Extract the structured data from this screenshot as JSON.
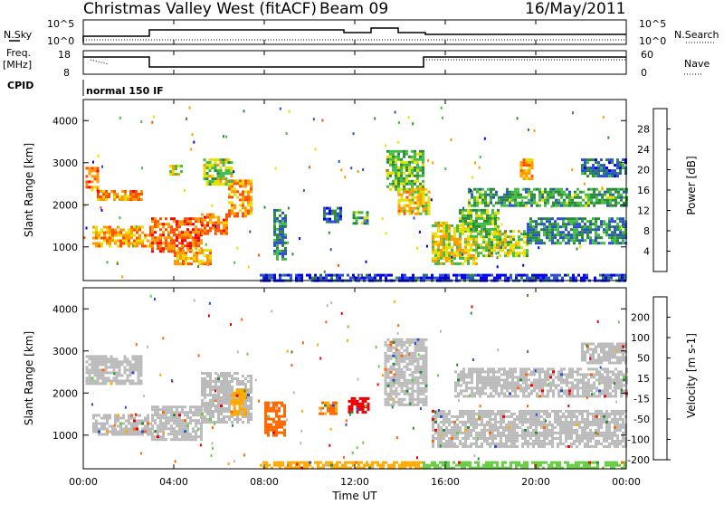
{
  "header": {
    "station": "Christmas Valley West (fitACF)",
    "beam": "Beam 09",
    "date": "16/May/2011"
  },
  "strips": {
    "nsky_label": "N.Sky",
    "nsearch_label": "N.Search",
    "nsky_ticks": [
      "10^5",
      "10^0"
    ],
    "nsearch_ticks": [
      "10^5",
      "10^0"
    ],
    "freq_label": "Freq.",
    "freq_unit": "[MHz]",
    "freq_ticks": [
      "18",
      "8"
    ],
    "nave_label": "Nave",
    "nave_ticks": [
      "60",
      "0"
    ],
    "cpid_label": "CPID",
    "cpid_value": "normal 150 IF"
  },
  "chart_data": [
    {
      "type": "heatmap",
      "panel": "power",
      "ylabel": "Slant Range [km]",
      "y_ticks": [
        "4000",
        "3000",
        "2000",
        "1000"
      ],
      "ylim": [
        200,
        4500
      ],
      "colorbar_label": "Power [dB]",
      "colorbar_ticks": [
        "28",
        "24",
        "20",
        "16",
        "12",
        "8",
        "4"
      ],
      "colors": [
        "#0000ee",
        "#2a4fd0",
        "#2a8a3a",
        "#44bb44",
        "#e8e000",
        "#ff9a00",
        "#ff5000",
        "#ff0000"
      ],
      "regions": [
        {
          "t0": 0.1,
          "t1": 0.6,
          "r0": 2350,
          "r1": 2900,
          "v": 26
        },
        {
          "t0": 0.6,
          "t1": 2.6,
          "r0": 2150,
          "r1": 2350,
          "v": 26
        },
        {
          "t0": 0.4,
          "t1": 3.0,
          "r0": 1000,
          "r1": 1500,
          "v": 24
        },
        {
          "t0": 3.0,
          "t1": 5.2,
          "r0": 900,
          "r1": 1700,
          "v": 27
        },
        {
          "t0": 5.2,
          "t1": 6.4,
          "r0": 1300,
          "r1": 1800,
          "v": 26
        },
        {
          "t0": 6.4,
          "t1": 7.4,
          "r0": 1700,
          "r1": 2600,
          "v": 25
        },
        {
          "t0": 4.0,
          "t1": 5.6,
          "r0": 600,
          "r1": 950,
          "v": 24
        },
        {
          "t0": 5.3,
          "t1": 6.6,
          "r0": 2500,
          "r1": 3100,
          "v": 18
        },
        {
          "t0": 3.8,
          "t1": 4.4,
          "r0": 2750,
          "r1": 2950,
          "v": 20
        },
        {
          "t0": 8.4,
          "t1": 9.0,
          "r0": 700,
          "r1": 1900,
          "v": 12
        },
        {
          "t0": 10.6,
          "t1": 11.4,
          "r0": 1600,
          "r1": 1950,
          "v": 8
        },
        {
          "t0": 11.9,
          "t1": 12.6,
          "r0": 1550,
          "r1": 1850,
          "v": 14
        },
        {
          "t0": 13.4,
          "t1": 15.0,
          "r0": 2300,
          "r1": 3300,
          "v": 16
        },
        {
          "t0": 13.9,
          "t1": 15.3,
          "r0": 1800,
          "r1": 2400,
          "v": 22
        },
        {
          "t0": 15.4,
          "t1": 17.4,
          "r0": 600,
          "r1": 1600,
          "v": 20
        },
        {
          "t0": 17.4,
          "t1": 19.6,
          "r0": 800,
          "r1": 1400,
          "v": 18
        },
        {
          "t0": 16.6,
          "t1": 18.4,
          "r0": 1400,
          "r1": 1900,
          "v": 16
        },
        {
          "t0": 17.0,
          "t1": 24.0,
          "r0": 2000,
          "r1": 2400,
          "v": 14
        },
        {
          "t0": 19.6,
          "t1": 24.0,
          "r0": 1100,
          "r1": 1700,
          "v": 12
        },
        {
          "t0": 22.0,
          "t1": 24.0,
          "r0": 2700,
          "r1": 3100,
          "v": 10
        },
        {
          "t0": 19.3,
          "t1": 19.8,
          "r0": 2600,
          "r1": 3100,
          "v": 24
        },
        {
          "t0": 7.8,
          "t1": 24.0,
          "r0": 220,
          "r1": 360,
          "v": 6
        }
      ]
    },
    {
      "type": "heatmap",
      "panel": "velocity",
      "xlabel": "Time UT",
      "ylabel": "Slant Range [km]",
      "x_ticks": [
        "00:00",
        "04:00",
        "08:00",
        "12:00",
        "16:00",
        "20:00",
        "00:00"
      ],
      "xlim": [
        0,
        24
      ],
      "y_ticks": [
        "4000",
        "3000",
        "2000",
        "1000"
      ],
      "ylim": [
        200,
        4500
      ],
      "colorbar_label": "Velocity [m s-1]",
      "colorbar_ticks": [
        "200",
        "100",
        "50",
        "15",
        "-15",
        "-50",
        "-100",
        "-200"
      ],
      "colors": [
        "#2a4fd0",
        "#2a8a3a",
        "#66cc44",
        "#bbbbbb",
        "#bbbbbb",
        "#ffaa00",
        "#ff6600",
        "#ee0000"
      ],
      "regions": [
        {
          "t0": 0.1,
          "t1": 2.6,
          "r0": 2200,
          "r1": 2900,
          "v": 0
        },
        {
          "t0": 0.4,
          "t1": 3.0,
          "r0": 1000,
          "r1": 1500,
          "v": 0
        },
        {
          "t0": 3.0,
          "t1": 5.2,
          "r0": 900,
          "r1": 1700,
          "v": 0
        },
        {
          "t0": 5.2,
          "t1": 7.4,
          "r0": 1300,
          "r1": 2500,
          "v": 0
        },
        {
          "t0": 6.5,
          "t1": 7.2,
          "r0": 1500,
          "r1": 2100,
          "v": -60
        },
        {
          "t0": 8.0,
          "t1": 8.9,
          "r0": 1000,
          "r1": 1800,
          "v": -120
        },
        {
          "t0": 10.4,
          "t1": 11.2,
          "r0": 1500,
          "r1": 1800,
          "v": -80
        },
        {
          "t0": 11.7,
          "t1": 12.6,
          "r0": 1550,
          "r1": 1900,
          "v": -200
        },
        {
          "t0": 13.3,
          "t1": 15.2,
          "r0": 1700,
          "r1": 3300,
          "v": 0
        },
        {
          "t0": 15.4,
          "t1": 24.0,
          "r0": 700,
          "r1": 1600,
          "v": 0
        },
        {
          "t0": 16.4,
          "t1": 24.0,
          "r0": 1900,
          "r1": 2600,
          "v": 0
        },
        {
          "t0": 22.0,
          "t1": 24.0,
          "r0": 2700,
          "r1": 3200,
          "v": 0
        },
        {
          "t0": 7.8,
          "t1": 15.0,
          "r0": 220,
          "r1": 380,
          "v": -60
        },
        {
          "t0": 15.0,
          "t1": 24.0,
          "r0": 220,
          "r1": 380,
          "v": 60
        }
      ]
    }
  ]
}
